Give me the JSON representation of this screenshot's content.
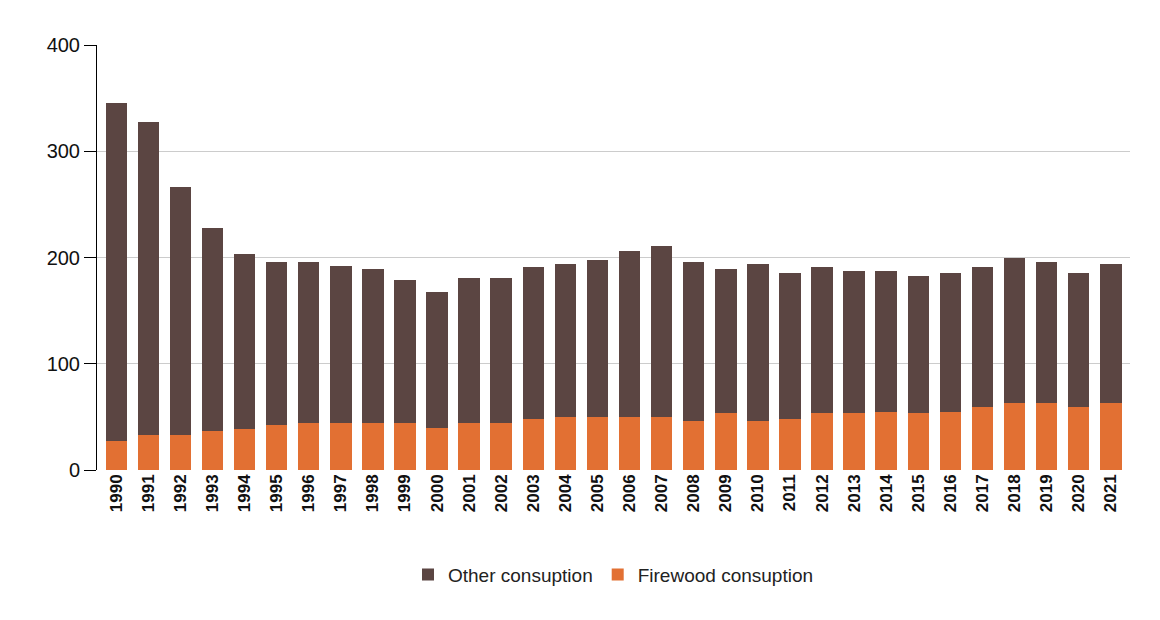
{
  "chart_data": {
    "type": "bar",
    "stacked": true,
    "grid": true,
    "legend": "bottom",
    "categories": [
      "1990",
      "1991",
      "1992",
      "1993",
      "1994",
      "1995",
      "1996",
      "1997",
      "1998",
      "1999",
      "2000",
      "2001",
      "2002",
      "2003",
      "2004",
      "2005",
      "2006",
      "2007",
      "2008",
      "2009",
      "2010",
      "2011",
      "2012",
      "2013",
      "2014",
      "2015",
      "2016",
      "2017",
      "2018",
      "2019",
      "2020",
      "2021"
    ],
    "series": [
      {
        "name": "Other consuption",
        "color": "#5b4542",
        "values": [
          318,
          295,
          233,
          191,
          164,
          154,
          152,
          148,
          145,
          135,
          128,
          137,
          137,
          143,
          144,
          148,
          156,
          161,
          150,
          135,
          148,
          137,
          137,
          133,
          132,
          129,
          130,
          132,
          137,
          133,
          126,
          131
        ]
      },
      {
        "name": "Firewood consuption",
        "color": "#e27033",
        "values": [
          27,
          33,
          33,
          37,
          39,
          42,
          44,
          44,
          44,
          44,
          40,
          44,
          44,
          48,
          50,
          50,
          50,
          50,
          46,
          54,
          46,
          48,
          54,
          54,
          55,
          54,
          55,
          59,
          63,
          63,
          59,
          63
        ]
      }
    ],
    "ylim": [
      0,
      400
    ],
    "yticks": [
      0,
      100,
      200,
      300,
      400
    ]
  }
}
